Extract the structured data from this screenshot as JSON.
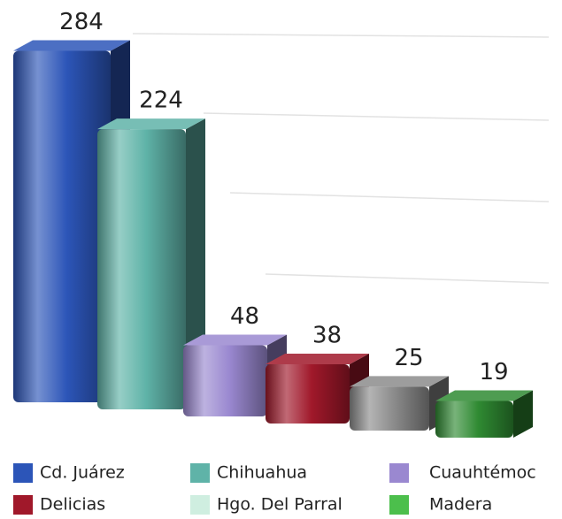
{
  "chart_data": {
    "type": "bar3d",
    "categories": [
      "Cd. Juárez",
      "Chihuahua",
      "Cuauhtémoc",
      "Delicias",
      "Hgo. Del Parral",
      "Madera"
    ],
    "values": [
      284,
      224,
      48,
      38,
      25,
      19
    ],
    "colors": [
      "#2c55b8",
      "#5fb3a8",
      "#9a88d0",
      "#a0182a",
      "#8c8c8c",
      "#2f8a32"
    ],
    "legend_colors": [
      "#2c55b8",
      "#5fb3a8",
      "#9a88d0",
      "#a0182a",
      "#cfeee0",
      "#4cbf4c"
    ],
    "ylim": [
      0,
      300
    ]
  }
}
